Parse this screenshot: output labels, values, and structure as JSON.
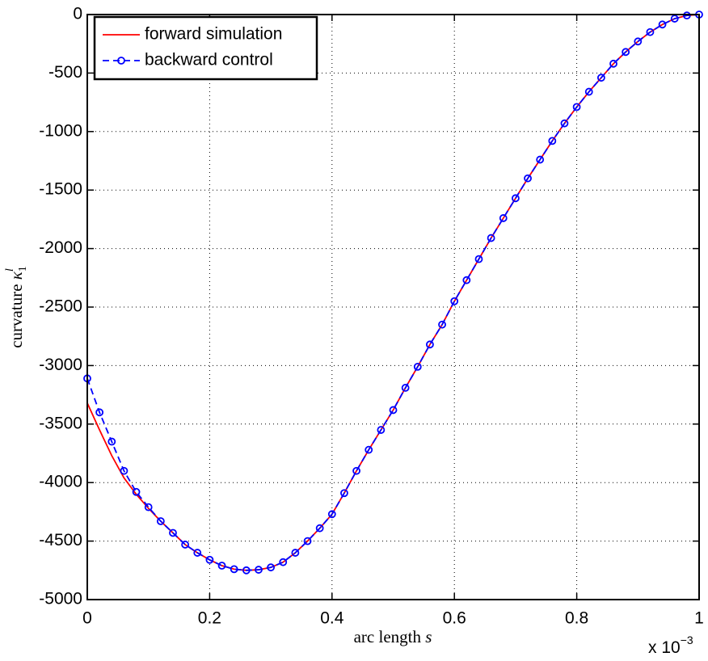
{
  "chart_data": {
    "type": "line",
    "xlabel": {
      "text": "arc length",
      "var": "s"
    },
    "ylabel": {
      "text": "curvature",
      "var": "κ",
      "sub": "1",
      "sup": "l"
    },
    "x_multiplier": {
      "base": "x 10",
      "exponent": "−3"
    },
    "x": [
      0,
      0.02,
      0.04,
      0.06,
      0.08,
      0.1,
      0.12,
      0.14,
      0.16,
      0.18,
      0.2,
      0.22,
      0.24,
      0.26,
      0.28,
      0.3,
      0.32,
      0.34,
      0.36,
      0.38,
      0.4,
      0.42,
      0.44,
      0.46,
      0.48,
      0.5,
      0.52,
      0.54,
      0.56,
      0.58,
      0.6,
      0.62,
      0.64,
      0.66,
      0.68,
      0.7,
      0.72,
      0.74,
      0.76,
      0.78,
      0.8,
      0.82,
      0.84,
      0.86,
      0.88,
      0.9,
      0.92,
      0.94,
      0.96,
      0.98,
      1
    ],
    "series": [
      {
        "name": "forward simulation",
        "color": "#ff0000",
        "style": "solid",
        "values": [
          -3320,
          -3550,
          -3770,
          -3960,
          -4100,
          -4220,
          -4330,
          -4430,
          -4530,
          -4600,
          -4660,
          -4710,
          -4740,
          -4750,
          -4745,
          -4725,
          -4680,
          -4600,
          -4500,
          -4390,
          -4270,
          -4090,
          -3900,
          -3720,
          -3550,
          -3380,
          -3190,
          -3010,
          -2820,
          -2650,
          -2450,
          -2270,
          -2090,
          -1910,
          -1740,
          -1570,
          -1400,
          -1240,
          -1080,
          -930,
          -790,
          -660,
          -540,
          -420,
          -320,
          -230,
          -150,
          -85,
          -35,
          -8,
          0
        ]
      },
      {
        "name": "backward control",
        "color": "#0000ff",
        "style": "dashed-circles",
        "values": [
          -3110,
          -3400,
          -3650,
          -3900,
          -4080,
          -4210,
          -4330,
          -4430,
          -4530,
          -4600,
          -4660,
          -4710,
          -4740,
          -4750,
          -4745,
          -4725,
          -4680,
          -4600,
          -4500,
          -4390,
          -4270,
          -4090,
          -3900,
          -3720,
          -3550,
          -3380,
          -3190,
          -3010,
          -2820,
          -2650,
          -2450,
          -2270,
          -2090,
          -1910,
          -1740,
          -1570,
          -1400,
          -1240,
          -1080,
          -930,
          -790,
          -660,
          -540,
          -420,
          -320,
          -230,
          -150,
          -85,
          -35,
          -8,
          0
        ]
      }
    ],
    "xlim": [
      0,
      1
    ],
    "xticks": [
      0,
      0.2,
      0.4,
      0.6,
      0.8,
      1
    ],
    "ylim": [
      -5000,
      0
    ],
    "yticks": [
      -5000,
      -4500,
      -4000,
      -3500,
      -3000,
      -2500,
      -2000,
      -1500,
      -1000,
      -500,
      0
    ],
    "grid": true,
    "legend": "upper-left"
  }
}
